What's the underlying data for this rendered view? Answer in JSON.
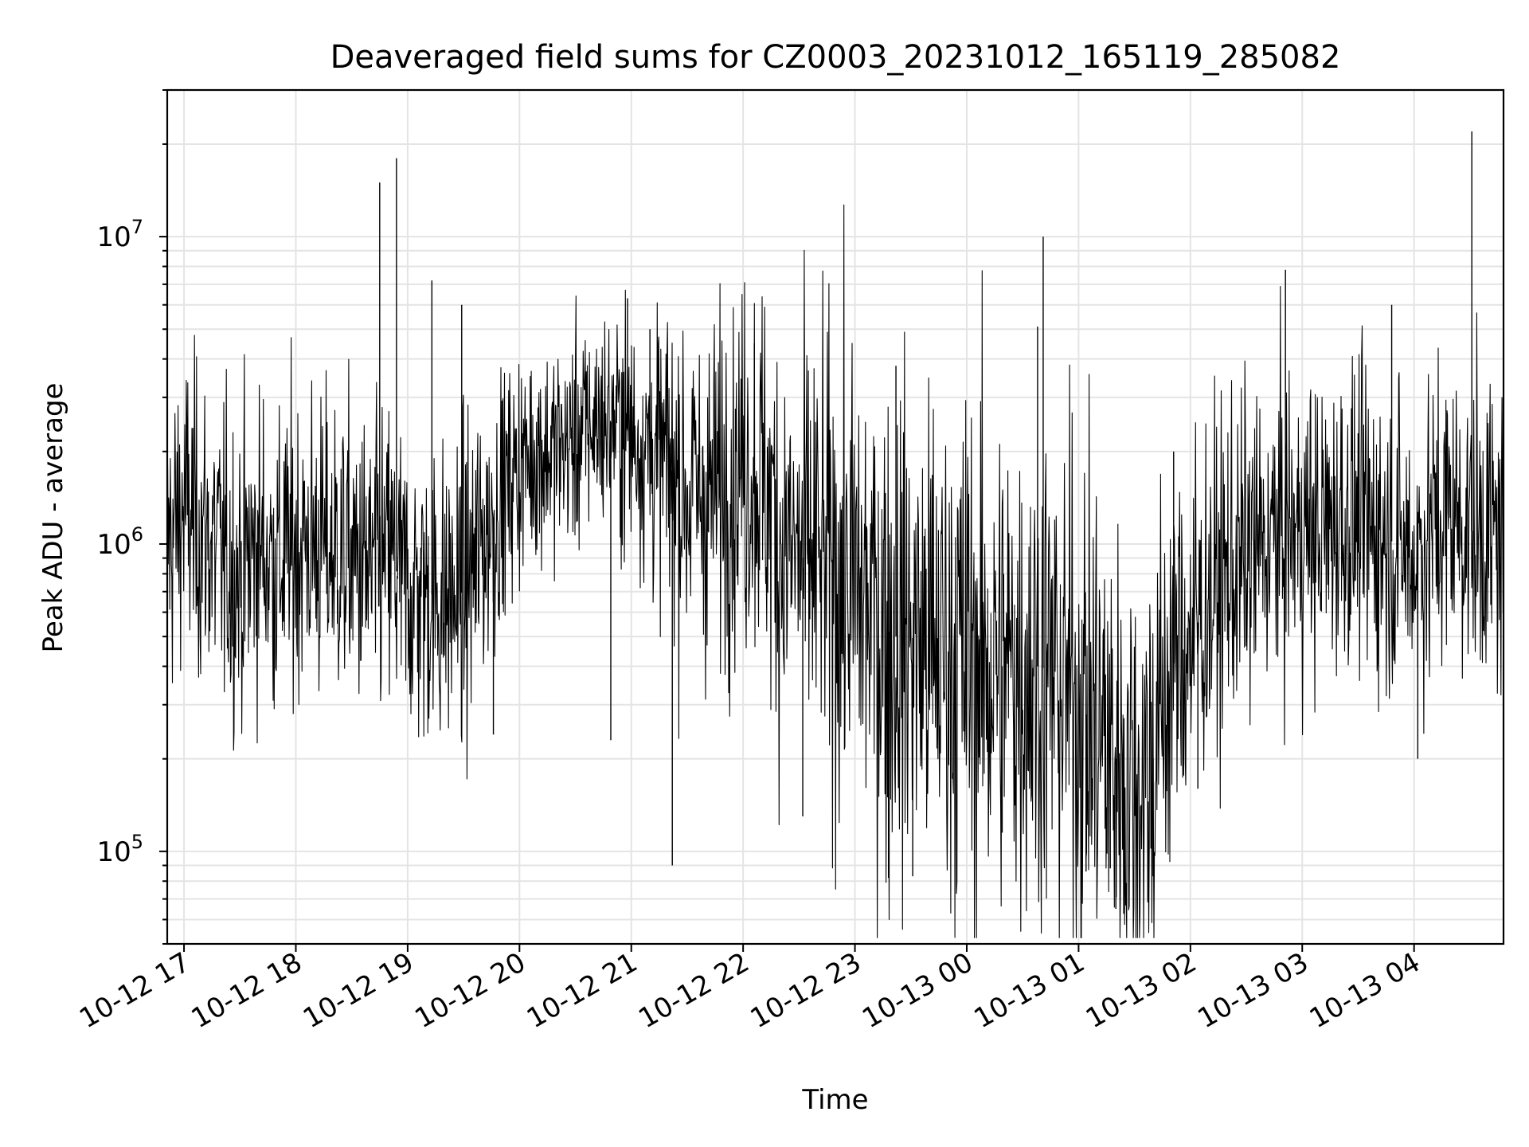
{
  "chart_data": {
    "type": "line",
    "title": "Deaveraged field sums for CZ0003_20231012_165119_285082",
    "xlabel": "Time",
    "ylabel": "Peak ADU - average",
    "yscale": "log",
    "ylim": [
      50000,
      30000000
    ],
    "xlim": [
      "2023-10-12 16:51",
      "2023-10-13 04:48"
    ],
    "grid": true,
    "line_color": "#000000",
    "x_ticks": [
      {
        "label": "10-12 17",
        "time": "2023-10-12 17:00"
      },
      {
        "label": "10-12 18",
        "time": "2023-10-12 18:00"
      },
      {
        "label": "10-12 19",
        "time": "2023-10-12 19:00"
      },
      {
        "label": "10-12 20",
        "time": "2023-10-12 20:00"
      },
      {
        "label": "10-12 21",
        "time": "2023-10-12 21:00"
      },
      {
        "label": "10-12 22",
        "time": "2023-10-12 22:00"
      },
      {
        "label": "10-12 23",
        "time": "2023-10-12 23:00"
      },
      {
        "label": "10-13 00",
        "time": "2023-10-13 00:00"
      },
      {
        "label": "10-13 01",
        "time": "2023-10-13 01:00"
      },
      {
        "label": "10-13 02",
        "time": "2023-10-13 02:00"
      },
      {
        "label": "10-13 03",
        "time": "2023-10-13 03:00"
      },
      {
        "label": "10-13 04",
        "time": "2023-10-13 04:00"
      }
    ],
    "y_ticks": [
      {
        "base": "10",
        "exp": "5",
        "value": 100000
      },
      {
        "base": "10",
        "exp": "6",
        "value": 1000000
      },
      {
        "base": "10",
        "exp": "7",
        "value": 10000000
      }
    ],
    "series": [
      {
        "x": [
          "2023-10-12 16:51",
          "2023-10-12 17:00",
          "2023-10-12 17:10",
          "2023-10-12 17:20",
          "2023-10-12 17:30",
          "2023-10-12 17:40",
          "2023-10-12 17:50",
          "2023-10-12 18:00",
          "2023-10-12 18:10",
          "2023-10-12 18:20",
          "2023-10-12 18:30",
          "2023-10-12 18:40",
          "2023-10-12 18:50",
          "2023-10-12 19:00",
          "2023-10-12 19:10",
          "2023-10-12 19:20",
          "2023-10-12 19:30",
          "2023-10-12 19:40",
          "2023-10-12 19:50",
          "2023-10-12 20:00",
          "2023-10-12 20:10",
          "2023-10-12 20:20",
          "2023-10-12 20:30",
          "2023-10-12 20:40",
          "2023-10-12 20:50",
          "2023-10-12 21:00",
          "2023-10-12 21:10",
          "2023-10-12 21:20",
          "2023-10-12 21:30",
          "2023-10-12 21:40",
          "2023-10-12 21:50",
          "2023-10-12 22:00",
          "2023-10-12 22:10",
          "2023-10-12 22:20",
          "2023-10-12 22:30",
          "2023-10-12 22:40",
          "2023-10-12 22:50",
          "2023-10-12 23:00",
          "2023-10-12 23:10",
          "2023-10-12 23:20",
          "2023-10-12 23:30",
          "2023-10-12 23:40",
          "2023-10-12 23:50",
          "2023-10-13 00:00",
          "2023-10-13 00:10",
          "2023-10-13 00:20",
          "2023-10-13 00:30",
          "2023-10-13 00:40",
          "2023-10-13 00:50",
          "2023-10-13 01:00",
          "2023-10-13 01:10",
          "2023-10-13 01:20",
          "2023-10-13 01:30",
          "2023-10-13 01:40",
          "2023-10-13 01:50",
          "2023-10-13 02:00",
          "2023-10-13 02:10",
          "2023-10-13 02:20",
          "2023-10-13 02:30",
          "2023-10-13 02:40",
          "2023-10-13 02:50",
          "2023-10-13 03:00",
          "2023-10-13 03:10",
          "2023-10-13 03:20",
          "2023-10-13 03:30",
          "2023-10-13 03:40",
          "2023-10-13 03:50",
          "2023-10-13 04:00",
          "2023-10-13 04:10",
          "2023-10-13 04:20",
          "2023-10-13 04:30",
          "2023-10-13 04:40",
          "2023-10-13 04:48"
        ],
        "y": [
          1000000,
          1300000,
          1100000,
          900000,
          800000,
          1000000,
          850000,
          1000000,
          1000000,
          950000,
          900000,
          800000,
          900000,
          700000,
          700000,
          650000,
          700000,
          1000000,
          1400000,
          1800000,
          2000000,
          2000000,
          2200000,
          2500000,
          2500000,
          2300000,
          2000000,
          1800000,
          1500000,
          1400000,
          1600000,
          1800000,
          1700000,
          1000000,
          900000,
          900000,
          800000,
          700000,
          600000,
          500000,
          500000,
          450000,
          450000,
          450000,
          400000,
          400000,
          400000,
          400000,
          350000,
          300000,
          250000,
          200000,
          160000,
          200000,
          400000,
          500000,
          650000,
          800000,
          900000,
          1000000,
          1100000,
          1100000,
          1100000,
          1200000,
          1200000,
          1100000,
          1000000,
          900000,
          1100000,
          1300000,
          1100000,
          1100000,
          1000000
        ],
        "spread": [
          0.25,
          0.25,
          0.25,
          0.25,
          0.25,
          0.25,
          0.25,
          0.25,
          0.25,
          0.25,
          0.25,
          0.25,
          0.25,
          0.25,
          0.25,
          0.25,
          0.25,
          0.25,
          0.2,
          0.18,
          0.18,
          0.18,
          0.18,
          0.18,
          0.18,
          0.2,
          0.22,
          0.25,
          0.28,
          0.28,
          0.28,
          0.3,
          0.3,
          0.35,
          0.35,
          0.35,
          0.38,
          0.4,
          0.4,
          0.42,
          0.42,
          0.42,
          0.42,
          0.42,
          0.42,
          0.42,
          0.42,
          0.42,
          0.42,
          0.42,
          0.42,
          0.42,
          0.4,
          0.38,
          0.35,
          0.3,
          0.28,
          0.27,
          0.26,
          0.25,
          0.25,
          0.25,
          0.25,
          0.25,
          0.25,
          0.25,
          0.25,
          0.25,
          0.25,
          0.25,
          0.25,
          0.25,
          0.25
        ]
      }
    ],
    "spikes": [
      {
        "time": "2023-10-12 18:45",
        "value": 15000000
      },
      {
        "time": "2023-10-12 18:54",
        "value": 18000000
      },
      {
        "time": "2023-10-12 19:13",
        "value": 7200000
      },
      {
        "time": "2023-10-12 19:29",
        "value": 6000000
      },
      {
        "time": "2023-10-12 20:58",
        "value": 6300000
      },
      {
        "time": "2023-10-12 21:10",
        "value": 5000000
      },
      {
        "time": "2023-10-12 22:06",
        "value": 4500000
      },
      {
        "time": "2023-10-12 23:22",
        "value": 3800000
      },
      {
        "time": "2023-10-13 00:38",
        "value": 5100000
      },
      {
        "time": "2023-10-13 00:41",
        "value": 10000000
      },
      {
        "time": "2023-10-13 01:51",
        "value": 2000000
      },
      {
        "time": "2023-10-13 02:51",
        "value": 7800000
      },
      {
        "time": "2023-10-13 03:48",
        "value": 6000000
      },
      {
        "time": "2023-10-13 04:31",
        "value": 22000000
      },
      {
        "time": "2023-10-12 19:46",
        "value": 240000
      },
      {
        "time": "2023-10-12 20:49",
        "value": 230000
      },
      {
        "time": "2023-10-12 21:22",
        "value": 90000
      },
      {
        "time": "2023-10-12 22:32",
        "value": 130000
      },
      {
        "time": "2023-10-12 23:18",
        "value": 82000
      },
      {
        "time": "2023-10-12 23:31",
        "value": 83000
      },
      {
        "time": "2023-10-13 00:19",
        "value": 115000
      },
      {
        "time": "2023-10-13 01:04",
        "value": 86000
      },
      {
        "time": "2023-10-13 01:17",
        "value": 88000
      },
      {
        "time": "2023-10-13 01:20",
        "value": 65000
      },
      {
        "time": "2023-10-13 01:40",
        "value": 83000
      },
      {
        "time": "2023-10-13 02:04",
        "value": 160000
      },
      {
        "time": "2023-10-13 04:02",
        "value": 200000
      }
    ]
  }
}
